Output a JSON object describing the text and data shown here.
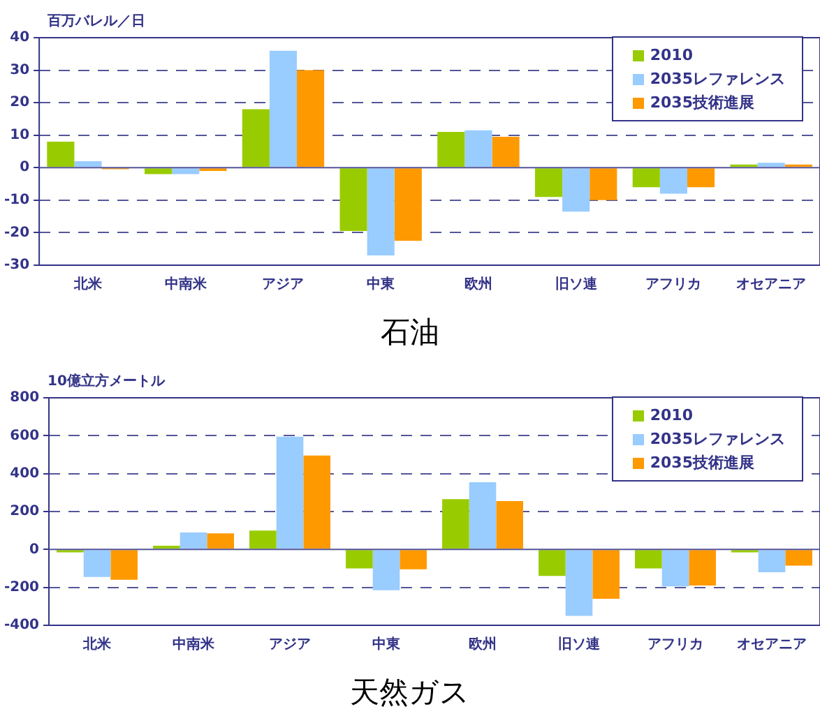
{
  "chart_data": [
    {
      "type": "bar",
      "title": "石油",
      "ylabel": "百万バレル／日",
      "categories": [
        "北米",
        "中南米",
        "アジア",
        "中東",
        "欧州",
        "旧ソ連",
        "アフリカ",
        "オセアニア"
      ],
      "series": [
        {
          "name": "2010",
          "color": "#99cc00",
          "values": [
            8,
            -2,
            18,
            -19.5,
            11,
            -9,
            -6,
            1
          ]
        },
        {
          "name": "2035レファレンス",
          "color": "#99ccff",
          "values": [
            2,
            -2,
            36,
            -27,
            11.5,
            -13.5,
            -8,
            1.5
          ]
        },
        {
          "name": "2035技術進展",
          "color": "#ff9900",
          "values": [
            -0.5,
            -1,
            30,
            -22.5,
            9.5,
            -10,
            -6,
            1
          ]
        }
      ],
      "ref_lines": [
        {
          "axis": "y",
          "value": 0,
          "color": "#555599",
          "line_style": "solid"
        }
      ],
      "ylim": [
        -30,
        40
      ],
      "yticks": [
        -30,
        -20,
        -10,
        0,
        10,
        20,
        30,
        40
      ],
      "grid": "y",
      "legend": "top right"
    },
    {
      "type": "bar",
      "title": "天然ガス",
      "ylabel": "10億立方メートル",
      "categories": [
        "北米",
        "中南米",
        "アジア",
        "中東",
        "欧州",
        "旧ソ連",
        "アフリカ",
        "オセアニア"
      ],
      "series": [
        {
          "name": "2010",
          "color": "#99cc00",
          "values": [
            -15,
            20,
            100,
            -100,
            265,
            -140,
            -100,
            -15
          ]
        },
        {
          "name": "2035レファレンス",
          "color": "#99ccff",
          "values": [
            -145,
            90,
            595,
            -215,
            355,
            -350,
            -195,
            -120
          ]
        },
        {
          "name": "2035技術進展",
          "color": "#ff9900",
          "values": [
            -160,
            85,
            495,
            -105,
            255,
            -260,
            -190,
            -85
          ]
        }
      ],
      "ref_lines": [
        {
          "axis": "y",
          "value": 0,
          "color": "#555599",
          "line_style": "solid"
        }
      ],
      "ylim": [
        -400,
        800
      ],
      "yticks": [
        -400,
        -200,
        0,
        200,
        400,
        600,
        800
      ],
      "grid": "y",
      "legend": "top right"
    }
  ]
}
